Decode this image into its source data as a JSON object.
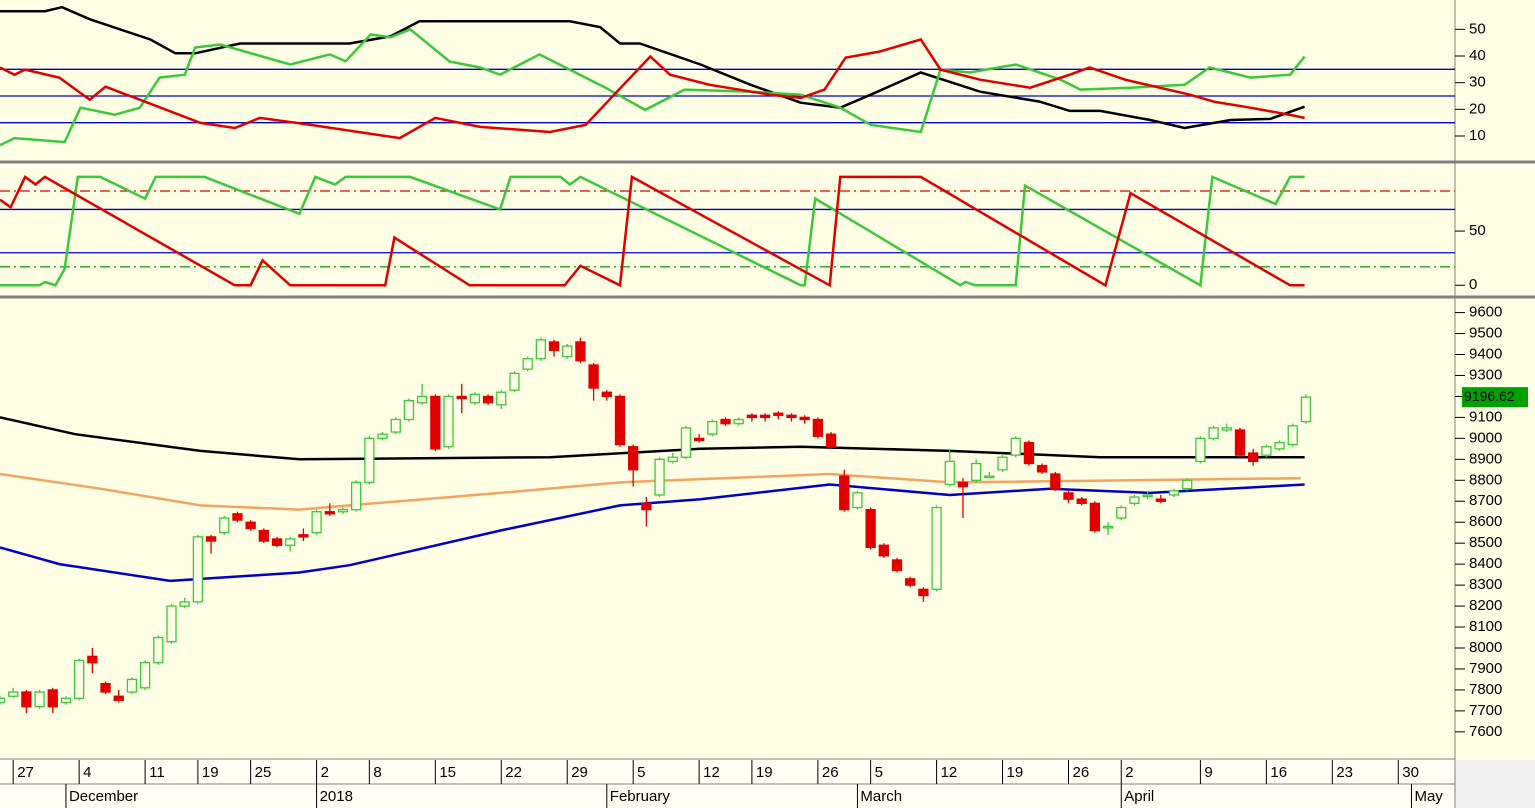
{
  "chart_data": [
    {
      "type": "line",
      "xlim": [
        0,
        110.3
      ],
      "ylim": [
        1,
        61
      ],
      "yticks": [
        10,
        20,
        30,
        40,
        50
      ],
      "hlines": [
        {
          "value": 15,
          "color": "#0000c8"
        },
        {
          "value": 25,
          "color": "#0000c8"
        },
        {
          "value": 35,
          "color": "#0000c8"
        }
      ],
      "series": [
        {
          "color": "#000000",
          "x": [
            0,
            3.4,
            4.7,
            6.8,
            11.4,
            13.3,
            14.8,
            18.2,
            26.5,
            29.6,
            31.8,
            43.2,
            45.5,
            47,
            48.5,
            53.1,
            56.9,
            60.7,
            63.7,
            66,
            69.8,
            74.3,
            78.8,
            81.1,
            83.4,
            87.2,
            89.8,
            93.3,
            96.3,
            98.9
          ],
          "values": [
            56.8,
            56.8,
            58.3,
            53.8,
            46.2,
            41,
            41,
            44.7,
            44.7,
            47.4,
            53,
            53,
            50.8,
            44.7,
            44.7,
            36.8,
            29.2,
            22.5,
            20.6,
            25.5,
            33.8,
            26.6,
            22.9,
            19.4,
            19.4,
            16,
            13,
            16,
            16.4,
            21
          ]
        },
        {
          "color": "#3cc83c",
          "x": [
            0,
            1.1,
            4.9,
            6.1,
            8.7,
            10.6,
            12.1,
            14,
            14.8,
            16.7,
            22,
            25,
            26.2,
            28.1,
            29.6,
            31.1,
            34.1,
            36.4,
            37.9,
            40.9,
            45.9,
            48.9,
            51.9,
            56.9,
            60.7,
            63.7,
            66,
            69.8,
            71.3,
            73.5,
            77,
            80.4,
            81.9,
            85.7,
            89.8,
            91.7,
            94.8,
            97.8,
            98.9
          ],
          "values": [
            6.6,
            9.2,
            7.7,
            20.6,
            18,
            20.6,
            31.9,
            33,
            43.2,
            44.3,
            36.8,
            40.6,
            38,
            48.1,
            47,
            50,
            37.9,
            35.7,
            33,
            40.6,
            28.1,
            19.8,
            27.4,
            26.6,
            25.5,
            20.6,
            14.2,
            11.5,
            34.9,
            33.8,
            36.8,
            31.1,
            27.4,
            28.1,
            29.2,
            35.7,
            31.9,
            33,
            39.8
          ]
        },
        {
          "color": "#e00000",
          "x": [
            0,
            1.1,
            1.9,
            4.5,
            6.8,
            8,
            10.6,
            15.2,
            17.8,
            19.7,
            23.5,
            30.3,
            33,
            36.4,
            41.7,
            44.4,
            46.2,
            49.3,
            50.8,
            53.8,
            58.4,
            60.7,
            62.5,
            64.1,
            66.7,
            69.8,
            71.3,
            74.3,
            78.1,
            81.1,
            82.6,
            85.3,
            90.2,
            92.1,
            94.8,
            97.8,
            98.9
          ],
          "values": [
            35.7,
            33,
            34.9,
            31.9,
            23.6,
            28.5,
            23.6,
            14.9,
            13,
            16.8,
            14.2,
            9.2,
            16.8,
            13.4,
            11.5,
            14.2,
            23.6,
            39.8,
            33,
            29.2,
            25.5,
            24.3,
            27.4,
            39.4,
            41.7,
            46.2,
            34.9,
            31.1,
            28.1,
            33,
            35.7,
            31.1,
            25.5,
            22.8,
            20.6,
            17.9,
            16.8
          ]
        }
      ]
    },
    {
      "type": "line",
      "xlim": [
        0,
        110.3
      ],
      "ylim": [
        -9,
        111
      ],
      "yticks": [
        0,
        50
      ],
      "hlines": [
        {
          "value": 87,
          "color": "#e00000",
          "dash": "dashdot"
        },
        {
          "value": 70,
          "color": "#0000c8"
        },
        {
          "value": 30,
          "color": "#0000c8"
        },
        {
          "value": 17,
          "color": "#20a020",
          "dash": "dashdot"
        }
      ],
      "series": [
        {
          "color": "#3cc83c",
          "x": [
            0,
            3,
            3.4,
            4.2,
            4.9,
            5.9,
            7.6,
            11,
            11.8,
            15.5,
            22.7,
            23.9,
            25.4,
            26.2,
            31.1,
            37.9,
            38.7,
            42.5,
            43.2,
            44,
            60.7,
            61,
            61.8,
            72.8,
            73.2,
            73.9,
            77,
            77.7,
            91,
            91.9,
            96.7,
            97.8,
            98.9
          ],
          "values": [
            0,
            0,
            3,
            0,
            15,
            100,
            100,
            80,
            100,
            100,
            66,
            100,
            93,
            100,
            100,
            70,
            100,
            100,
            93,
            100,
            0,
            0,
            80,
            0,
            3,
            0,
            0,
            92,
            0,
            100,
            75,
            100,
            100
          ]
        },
        {
          "color": "#e00000",
          "x": [
            0,
            0.8,
            1.9,
            2.7,
            3.4,
            17.8,
            19,
            19.9,
            22,
            29.2,
            29.9,
            35.6,
            42.8,
            44,
            47,
            47.9,
            62.9,
            63.7,
            69.8,
            83.8,
            85.7,
            97.8,
            98.9
          ],
          "values": [
            79,
            72,
            100,
            93,
            100,
            0,
            0,
            23,
            0,
            0,
            44,
            0,
            0,
            18,
            0,
            100,
            0,
            100,
            100,
            0,
            85,
            0,
            0
          ]
        }
      ]
    },
    {
      "type": "candlestick",
      "xlim": [
        0,
        110.3
      ],
      "ylim": [
        7480,
        9660
      ],
      "yticks": [
        7600,
        7700,
        7800,
        7900,
        8000,
        8100,
        8200,
        8300,
        8400,
        8500,
        8600,
        8700,
        8800,
        8900,
        9000,
        9100,
        9200,
        9300,
        9400,
        9500,
        9600
      ],
      "up_color": "#3cc83c",
      "down_color": "#e00000",
      "open": [
        7740,
        7770,
        7790,
        7720,
        7800,
        7740,
        7760,
        7960,
        7830,
        7770,
        7790,
        7810,
        7930,
        8030,
        8200,
        8220,
        8530,
        8550,
        8640,
        8600,
        8560,
        8520,
        8490,
        8540,
        8550,
        8650,
        8650,
        8660,
        8790,
        9000,
        9030,
        9090,
        9170,
        9200,
        8960,
        9200,
        9170,
        9200,
        9160,
        9230,
        9330,
        9380,
        9460,
        9390,
        9460,
        9350,
        9220,
        9200,
        8960,
        8690,
        8730,
        8890,
        8910,
        9000,
        9020,
        9090,
        9070,
        9110,
        9110,
        9120,
        9110,
        9100,
        9090,
        9020,
        8820,
        8670,
        8660,
        8490,
        8420,
        8330,
        8280,
        8280,
        8780,
        8790,
        8800,
        8820,
        8850,
        8920,
        8980,
        8870,
        8830,
        8740,
        8710,
        8690,
        8580,
        8620,
        8690,
        8730,
        8710,
        8730,
        8760,
        8890,
        9000,
        9040,
        9040,
        8930,
        8920,
        8950,
        8970,
        9080
      ],
      "high": [
        7770,
        7810,
        7800,
        7800,
        7810,
        7770,
        7950,
        8000,
        7840,
        7800,
        7860,
        7940,
        8060,
        8210,
        8240,
        8540,
        8540,
        8630,
        8650,
        8610,
        8570,
        8530,
        8530,
        8570,
        8660,
        8690,
        8670,
        8800,
        9010,
        9030,
        9100,
        9190,
        9260,
        9210,
        9210,
        9260,
        9220,
        9210,
        9230,
        9320,
        9390,
        9480,
        9470,
        9450,
        9480,
        9360,
        9230,
        9210,
        8970,
        8720,
        8910,
        8930,
        9060,
        9020,
        9090,
        9100,
        9100,
        9120,
        9120,
        9130,
        9120,
        9110,
        9100,
        9030,
        8850,
        8750,
        8670,
        8500,
        8430,
        8340,
        8290,
        8680,
        8950,
        8810,
        8900,
        8840,
        8920,
        9010,
        8990,
        8880,
        8840,
        8750,
        8720,
        8700,
        8600,
        8680,
        8730,
        8750,
        8730,
        8760,
        8810,
        9010,
        9060,
        9070,
        9050,
        8950,
        8970,
        8990,
        9070,
        9210
      ],
      "low": [
        7730,
        7760,
        7690,
        7710,
        7690,
        7730,
        7750,
        7880,
        7780,
        7740,
        7780,
        7800,
        7920,
        8020,
        8190,
        8210,
        8450,
        8540,
        8600,
        8560,
        8500,
        8480,
        8460,
        8510,
        8540,
        8630,
        8640,
        8650,
        8780,
        8990,
        9020,
        9080,
        9160,
        8940,
        8950,
        9120,
        9160,
        9160,
        9140,
        9220,
        9320,
        9370,
        9390,
        9380,
        9360,
        9180,
        9180,
        8960,
        8770,
        8580,
        8720,
        8880,
        8900,
        8980,
        9010,
        9060,
        9060,
        9080,
        9080,
        9090,
        9080,
        9070,
        9000,
        8950,
        8650,
        8660,
        8470,
        8430,
        8360,
        8290,
        8220,
        8270,
        8770,
        8620,
        8790,
        8810,
        8840,
        8910,
        8870,
        8830,
        8750,
        8690,
        8680,
        8550,
        8540,
        8610,
        8680,
        8710,
        8690,
        8720,
        8750,
        8880,
        8990,
        9030,
        8910,
        8870,
        8910,
        8940,
        8960,
        9070
      ],
      "close": [
        7760,
        7790,
        7720,
        7790,
        7720,
        7760,
        7940,
        7930,
        7790,
        7750,
        7850,
        7930,
        8050,
        8200,
        8220,
        8530,
        8510,
        8620,
        8610,
        8570,
        8510,
        8490,
        8520,
        8530,
        8650,
        8640,
        8660,
        8790,
        9000,
        9020,
        9090,
        9180,
        9200,
        8950,
        9200,
        9190,
        9210,
        9170,
        9220,
        9310,
        9380,
        9470,
        9420,
        9440,
        9370,
        9240,
        9200,
        8970,
        8850,
        8660,
        8900,
        8910,
        9050,
        8990,
        9080,
        9070,
        9090,
        9100,
        9100,
        9110,
        9100,
        9090,
        9010,
        8960,
        8660,
        8740,
        8480,
        8440,
        8370,
        8300,
        8250,
        8670,
        8890,
        8770,
        8880,
        8820,
        8910,
        9000,
        8880,
        8840,
        8760,
        8710,
        8690,
        8560,
        8580,
        8670,
        8720,
        8730,
        8700,
        8750,
        8800,
        9000,
        9050,
        9050,
        8920,
        8890,
        8960,
        8980,
        9060,
        9196.62
      ],
      "series": [
        {
          "color": "#000000",
          "x": [
            0,
            5.7,
            15.2,
            22.7,
            41.7,
            53.1,
            60.7,
            72,
            83.4,
            98.9
          ],
          "values": [
            9100,
            9020,
            8940,
            8900,
            8910,
            8950,
            8960,
            8940,
            8910,
            8910
          ]
        },
        {
          "color": "#f4a460",
          "x": [
            0,
            7.6,
            15.2,
            22.7,
            30.3,
            37.9,
            47,
            62.9,
            72,
            98.6
          ],
          "values": [
            8830,
            8760,
            8680,
            8660,
            8700,
            8740,
            8790,
            8830,
            8790,
            8810
          ]
        },
        {
          "color": "#0000c8",
          "x": [
            0,
            4.5,
            12.9,
            22.7,
            26.5,
            37.9,
            47,
            53.1,
            62.9,
            72,
            79.6,
            87.2,
            98.9
          ],
          "values": [
            8480,
            8400,
            8320,
            8360,
            8395,
            8560,
            8680,
            8710,
            8780,
            8730,
            8760,
            8740,
            8780
          ]
        }
      ],
      "xticks": [
        {
          "value": 1,
          "label": "27"
        },
        {
          "value": 6,
          "label": "4"
        },
        {
          "value": 11,
          "label": "11"
        },
        {
          "value": 15,
          "label": "19"
        },
        {
          "value": 19,
          "label": "25"
        },
        {
          "value": 24,
          "label": "2"
        },
        {
          "value": 28,
          "label": "8"
        },
        {
          "value": 33,
          "label": "15"
        },
        {
          "value": 38,
          "label": "22"
        },
        {
          "value": 43,
          "label": "29"
        },
        {
          "value": 48,
          "label": "5"
        },
        {
          "value": 53,
          "label": "12"
        },
        {
          "value": 57,
          "label": "19"
        },
        {
          "value": 62,
          "label": "26"
        },
        {
          "value": 66,
          "label": "5"
        },
        {
          "value": 71,
          "label": "12"
        },
        {
          "value": 76,
          "label": "19"
        },
        {
          "value": 81,
          "label": "26"
        },
        {
          "value": 85,
          "label": "2"
        },
        {
          "value": 91,
          "label": "9"
        },
        {
          "value": 96,
          "label": "16"
        },
        {
          "value": 101,
          "label": "23"
        },
        {
          "value": 106,
          "label": "30"
        }
      ],
      "month_ticks": [
        {
          "value": 5,
          "label": "December"
        },
        {
          "value": 24,
          "label": "2018"
        },
        {
          "value": 46,
          "label": "February"
        },
        {
          "value": 65,
          "label": "March"
        },
        {
          "value": 85,
          "label": "April"
        },
        {
          "value": 107,
          "label": "May"
        }
      ]
    }
  ]
}
